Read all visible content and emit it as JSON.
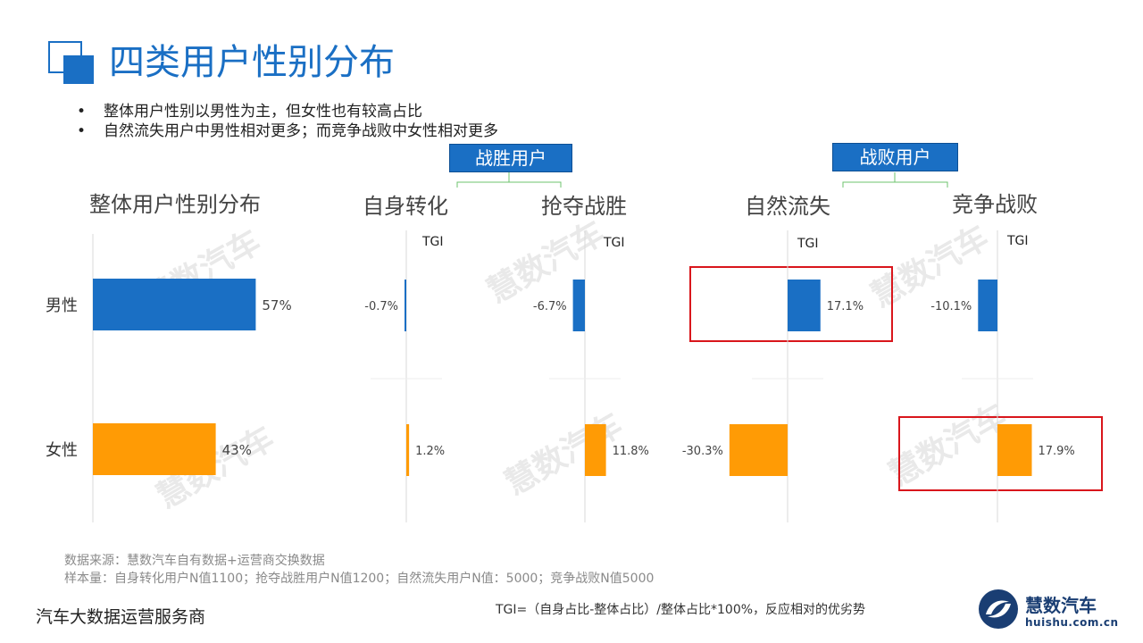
{
  "page": {
    "title": "四类用户性别分布",
    "bullets": [
      "整体用户性别以男性为主，但女性也有较高占比",
      "自然流失用户中男性相对更多；而竞争战败中女性相对更多"
    ],
    "section_win": "战胜用户",
    "section_lose": "战败用户",
    "footer_source": "数据来源：慧数汽车自有数据+运营商交换数据",
    "footer_sample": "样本量：自身转化用户N值1100；抢夺战胜用户N值1200；自然流失用户N值：5000；竞争战败N值5000",
    "footer_left": "汽车大数据运营服务商",
    "footer_tgi": "TGI=（自身占比-整体占比）/整体占比*100%，反应相对的优劣势",
    "logo_name": "慧数汽车",
    "logo_url": "huishu.com.cn",
    "watermark": "慧数汽车"
  },
  "chart_data": [
    {
      "type": "bar",
      "title": "整体用户性别分布",
      "categories": [
        "男性",
        "女性"
      ],
      "series": [
        {
          "values": [
            57,
            43
          ]
        }
      ],
      "value_labels": [
        "57%",
        "43%"
      ],
      "colors": [
        "#1a6fc4",
        "#ff9b05"
      ],
      "orientation": "horizontal"
    },
    {
      "type": "bar",
      "title": "自身转化",
      "axis_label": "TGI",
      "categories": [
        "男性",
        "女性"
      ],
      "series": [
        {
          "values": [
            -0.7,
            1.2
          ]
        }
      ],
      "value_labels": [
        "-0.7%",
        "1.2%"
      ],
      "colors": [
        "#1a6fc4",
        "#ff9b05"
      ],
      "orientation": "horizontal"
    },
    {
      "type": "bar",
      "title": "抢夺战胜",
      "axis_label": "TGI",
      "categories": [
        "男性",
        "女性"
      ],
      "series": [
        {
          "values": [
            -6.7,
            11.8
          ]
        }
      ],
      "value_labels": [
        "-6.7%",
        "11.8%"
      ],
      "colors": [
        "#1a6fc4",
        "#ff9b05"
      ],
      "orientation": "horizontal"
    },
    {
      "type": "bar",
      "title": "自然流失",
      "axis_label": "TGI",
      "categories": [
        "男性",
        "女性"
      ],
      "series": [
        {
          "values": [
            17.1,
            -30.3
          ]
        }
      ],
      "value_labels": [
        "17.1%",
        "-30.3%"
      ],
      "colors": [
        "#1a6fc4",
        "#ff9b05"
      ],
      "highlight": [
        true,
        false
      ],
      "orientation": "horizontal"
    },
    {
      "type": "bar",
      "title": "竞争战败",
      "axis_label": "TGI",
      "categories": [
        "男性",
        "女性"
      ],
      "series": [
        {
          "values": [
            -10.1,
            17.9
          ]
        }
      ],
      "value_labels": [
        "-10.1%",
        "17.9%"
      ],
      "colors": [
        "#1a6fc4",
        "#ff9b05"
      ],
      "highlight": [
        false,
        true
      ],
      "orientation": "horizontal"
    }
  ]
}
